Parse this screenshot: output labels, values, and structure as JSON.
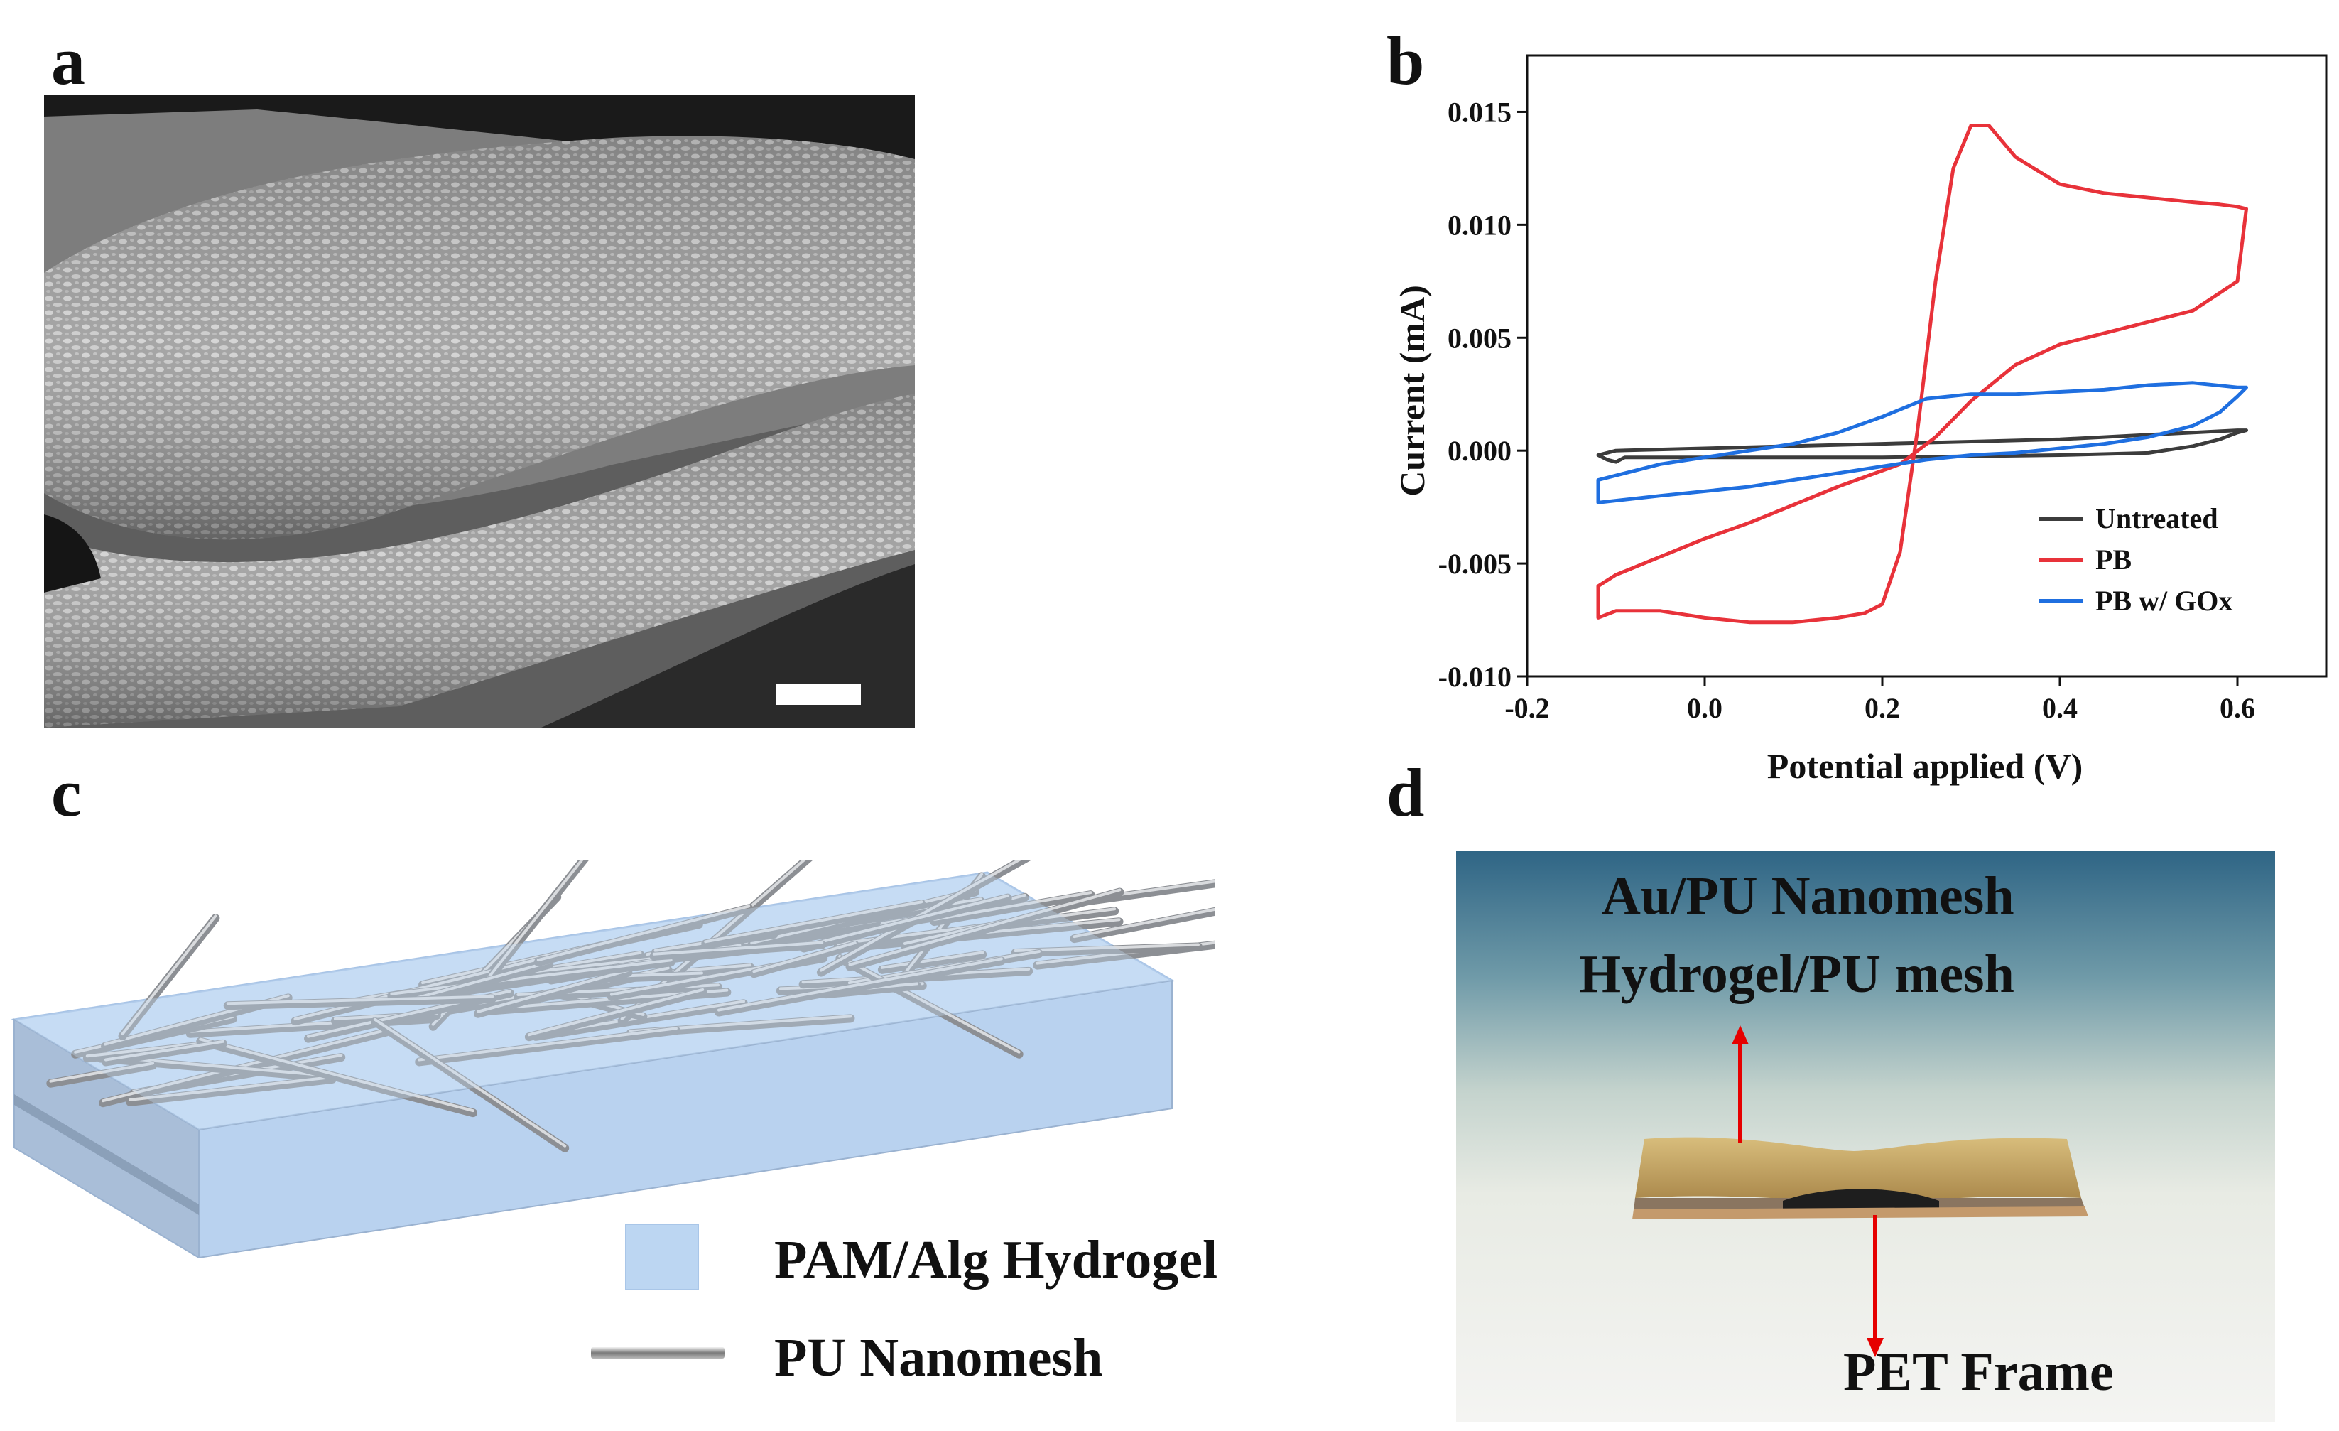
{
  "panels": {
    "a": {
      "letter": "a"
    },
    "b": {
      "letter": "b"
    },
    "c": {
      "letter": "c"
    },
    "d": {
      "letter": "d"
    }
  },
  "chart_data": {
    "type": "line",
    "xlabel": "Potential applied (V)",
    "ylabel": "Current (mA)",
    "xlim": [
      -0.2,
      0.7
    ],
    "ylim": [
      -0.01,
      0.0175
    ],
    "xticks": [
      "-0.2",
      "0.0",
      "0.2",
      "0.4",
      "0.6"
    ],
    "yticks": [
      "-0.010",
      "-0.005",
      "0.000",
      "0.005",
      "0.010",
      "0.015"
    ],
    "xtick_values": [
      -0.2,
      0.0,
      0.2,
      0.4,
      0.6
    ],
    "ytick_values": [
      -0.01,
      -0.005,
      0.0,
      0.005,
      0.01,
      0.015
    ],
    "legend_position": "bottom-right",
    "grid": false,
    "series": [
      {
        "name": "Untreated",
        "color": "#3c3c3c",
        "x": [
          -0.12,
          -0.11,
          -0.1,
          -0.09,
          0.0,
          0.1,
          0.2,
          0.3,
          0.4,
          0.5,
          0.55,
          0.58,
          0.6,
          0.61,
          0.6,
          0.55,
          0.5,
          0.4,
          0.3,
          0.2,
          0.1,
          0.0,
          -0.1,
          -0.12
        ],
        "y": [
          -0.0002,
          -0.0004,
          -0.0005,
          -0.0003,
          -0.0003,
          -0.0003,
          -0.0003,
          -0.00025,
          -0.0002,
          -0.0001,
          0.0002,
          0.0005,
          0.0008,
          0.0009,
          0.0009,
          0.0008,
          0.0007,
          0.0005,
          0.0004,
          0.0003,
          0.0002,
          0.0001,
          0.0,
          -0.0002
        ]
      },
      {
        "name": "PB",
        "color": "#e8323a",
        "x": [
          -0.12,
          -0.1,
          -0.05,
          0.0,
          0.05,
          0.1,
          0.15,
          0.18,
          0.2,
          0.22,
          0.24,
          0.26,
          0.28,
          0.3,
          0.32,
          0.35,
          0.4,
          0.45,
          0.5,
          0.55,
          0.58,
          0.6,
          0.61,
          0.6,
          0.55,
          0.5,
          0.45,
          0.4,
          0.35,
          0.3,
          0.28,
          0.26,
          0.22,
          0.15,
          0.1,
          0.05,
          0.0,
          -0.05,
          -0.1,
          -0.12
        ],
        "y": [
          -0.0074,
          -0.0071,
          -0.0071,
          -0.0074,
          -0.0076,
          -0.0076,
          -0.0074,
          -0.0072,
          -0.0068,
          -0.0045,
          0.001,
          0.0075,
          0.0125,
          0.0144,
          0.0144,
          0.013,
          0.0118,
          0.0114,
          0.0112,
          0.011,
          0.0109,
          0.0108,
          0.0107,
          0.0075,
          0.0062,
          0.0057,
          0.0052,
          0.0047,
          0.0038,
          0.0022,
          0.0014,
          0.0006,
          -0.0006,
          -0.0016,
          -0.0024,
          -0.0032,
          -0.0039,
          -0.0047,
          -0.0055,
          -0.006
        ]
      },
      {
        "name": "PB w/ GOx",
        "color": "#1f6fe0",
        "x": [
          -0.12,
          -0.05,
          0.0,
          0.05,
          0.1,
          0.15,
          0.2,
          0.25,
          0.3,
          0.35,
          0.4,
          0.45,
          0.5,
          0.55,
          0.58,
          0.6,
          0.61,
          0.6,
          0.55,
          0.5,
          0.45,
          0.4,
          0.35,
          0.3,
          0.25,
          0.2,
          0.15,
          0.1,
          0.05,
          0.0,
          -0.05,
          -0.12
        ],
        "y": [
          -0.0023,
          -0.002,
          -0.0018,
          -0.0016,
          -0.0013,
          -0.001,
          -0.0007,
          -0.0004,
          -0.0002,
          -0.0001,
          0.0001,
          0.0003,
          0.0006,
          0.0011,
          0.0017,
          0.0024,
          0.0028,
          0.0028,
          0.003,
          0.0029,
          0.0027,
          0.0026,
          0.0025,
          0.0025,
          0.0023,
          0.0015,
          0.0008,
          0.0003,
          0.0,
          -0.0003,
          -0.0006,
          -0.0013
        ]
      }
    ]
  },
  "schematic": {
    "legend": [
      {
        "label": "PAM/Alg Hydrogel",
        "swatch": "#bcd6f2"
      },
      {
        "label": "PU Nanomesh",
        "swatch": "#9a9a9a"
      }
    ]
  },
  "photo": {
    "labels": [
      "Au/PU Nanomesh",
      "Hydrogel/PU mesh",
      "PET Frame"
    ],
    "arrow_color": "#e60000"
  }
}
